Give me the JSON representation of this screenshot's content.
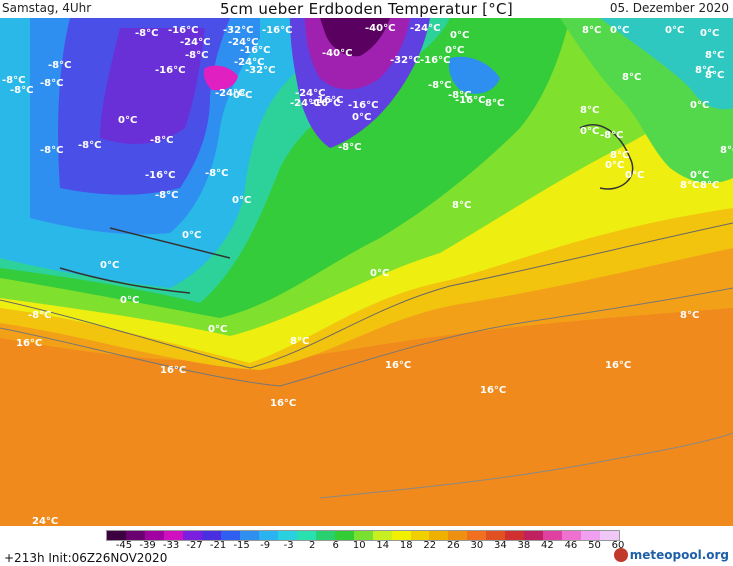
{
  "header": {
    "left": "Samstag, 4Uhr",
    "title": "5cm ueber Erdboden Temperatur [°C]",
    "right": "05. Dezember 2020"
  },
  "map_labels": [
    "-8°C",
    "-16°C",
    "-32°C",
    "-16°C",
    "-40°C",
    "-24°C",
    "0°C",
    "8°C",
    "0°C",
    "0°C",
    "-8°C",
    "-8°C",
    "-16°C",
    "-24°C",
    "-8°C",
    "-24°C",
    "-16°C",
    "-24°C",
    "-32°C",
    "-40°C",
    "-32°C",
    "-16°C",
    "8°C",
    "8°C",
    "0°C",
    "-8°C",
    "-8°C",
    "-16°C",
    "-8°C",
    "-8°C",
    "0°C",
    "-24°C",
    "0°C",
    "-24°C",
    "-16°C",
    "-24°C",
    "-8°C",
    "0°C",
    "0°C",
    "-16°C",
    "-16°C",
    "0°C",
    "8°C",
    "8°C",
    "0°C",
    "-8°C",
    "-8°C",
    "-8°C",
    "-16°C",
    "-8°C",
    "0°C",
    "0°C",
    "0°C",
    "-8°C",
    "-8°C",
    "0°C",
    "0°C",
    "0°C",
    "8°C",
    "8°C",
    "-8°C",
    "0°C",
    "0°C",
    "0°C",
    "8°C",
    "8°C",
    "8°C",
    "8°C",
    "16°C",
    "8°C",
    "8°C",
    "8°C",
    "16°C",
    "16°C",
    "16°C",
    "16°C",
    "16°C",
    "24°C"
  ],
  "colorbar": {
    "ticks": [
      "-45",
      "-39",
      "-33",
      "-27",
      "-21",
      "-15",
      "-9",
      "-3",
      "2",
      "6",
      "10",
      "14",
      "18",
      "22",
      "26",
      "30",
      "34",
      "38",
      "42",
      "46",
      "50",
      "60"
    ],
    "colors": [
      "#3c0040",
      "#6b0070",
      "#a000a0",
      "#d010c0",
      "#7a1fe0",
      "#4a2fe0",
      "#2f5ff0",
      "#2f8ff0",
      "#29b3f0",
      "#28d0e0",
      "#28e0b0",
      "#29d070",
      "#33cc33",
      "#7ae030",
      "#c8f020",
      "#f0f000",
      "#f0d000",
      "#f0b000",
      "#f09010",
      "#f07020",
      "#e05020",
      "#d03030",
      "#c02060",
      "#e040a0",
      "#f070d0",
      "#f0a0f0",
      "#f0c8f8"
    ]
  },
  "footer": {
    "init": "+213h  Init:06Z26NOV2020",
    "logo": "meteopool.org"
  }
}
